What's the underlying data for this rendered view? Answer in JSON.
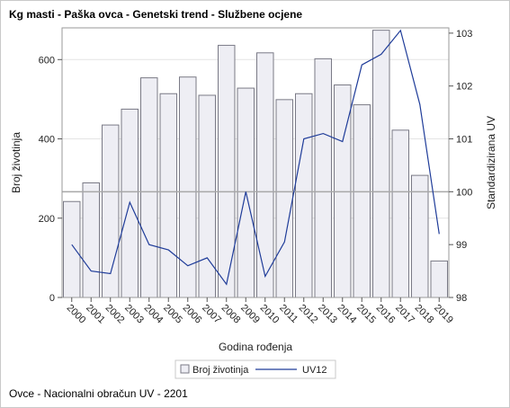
{
  "chart": {
    "title": "Kg masti - Paška ovca - Genetski trend - Službene ocjene",
    "footer": "Ovce - Nacionalni obračun UV - 2201"
  },
  "chart_data": {
    "type": "bar+line",
    "categories": [
      "2000",
      "2001",
      "2002",
      "2003",
      "2004",
      "2005",
      "2006",
      "2007",
      "2008",
      "2009",
      "2010",
      "2011",
      "2012",
      "2013",
      "2014",
      "2015",
      "2016",
      "2017",
      "2018",
      "2019"
    ],
    "series": [
      {
        "name": "Broj životinja",
        "type": "bar",
        "axis": "left",
        "values": [
          242,
          289,
          435,
          475,
          554,
          514,
          556,
          510,
          636,
          528,
          617,
          499,
          514,
          602,
          536,
          486,
          674,
          422,
          308,
          92
        ]
      },
      {
        "name": "UV12",
        "type": "line",
        "axis": "right",
        "values": [
          99.0,
          98.5,
          98.45,
          99.8,
          99.0,
          98.9,
          98.6,
          98.75,
          98.25,
          100.0,
          98.4,
          99.05,
          101.0,
          101.1,
          100.95,
          102.4,
          102.6,
          103.05,
          101.65,
          99.2
        ]
      }
    ],
    "xlabel": "Godina rođenja",
    "ylabel": "Broj životinja",
    "y2label": "Standardizirana UV",
    "ylim": [
      0,
      680
    ],
    "y2lim": [
      98,
      103.1
    ],
    "yticks": [
      0,
      200,
      400,
      600
    ],
    "y2ticks": [
      98,
      99,
      100,
      101,
      102,
      103
    ],
    "reference_line": {
      "axis": "right",
      "value": 100
    },
    "grid": true,
    "legend": "bottom-center",
    "colors": {
      "bar_fill": "#eeeef4",
      "bar_stroke": "#7a7a86",
      "line": "#1f3c99",
      "grid": "#e4e4e4",
      "reference": "#a8a8a8"
    }
  }
}
